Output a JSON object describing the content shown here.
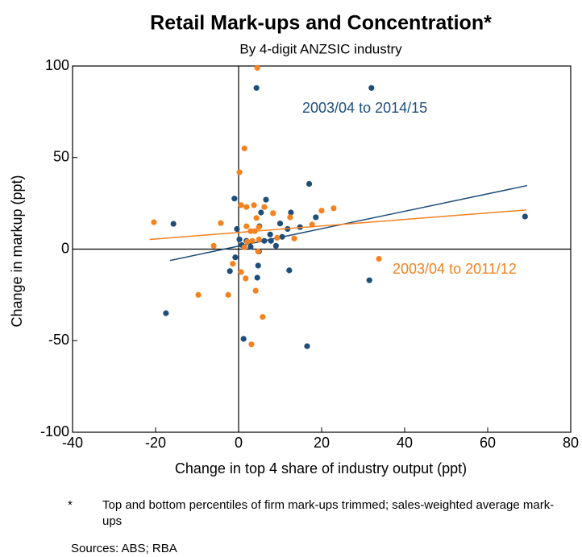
{
  "chart_data": {
    "type": "scatter",
    "title": "Retail Mark-ups and Concentration*",
    "subtitle": "By 4-digit ANZSIC industry",
    "x_label": "Change in top 4 share of industry output (ppt)",
    "y_label": "Change in markup (ppt)",
    "xlim": [
      -40,
      80
    ],
    "ylim": [
      -100,
      100
    ],
    "xticks": [
      -40,
      -20,
      0,
      20,
      40,
      60,
      80
    ],
    "yticks": [
      -100,
      -50,
      0,
      50,
      100
    ],
    "series": [
      {
        "name": "2003/04 to 2014/15",
        "color": "#1f4e79",
        "x": [
          32,
          4.3,
          -15.7,
          -17.5,
          -1,
          6.6,
          17,
          1.2,
          16.5,
          12.2,
          31.5,
          69,
          18.6,
          12.6,
          5.4,
          4.5,
          -2.1,
          -0.8,
          -0.4,
          5,
          7.6,
          10,
          14.8,
          10.5,
          11.8,
          9,
          4.9,
          0.8,
          1.9,
          2.9,
          6.2,
          7.8,
          4.7,
          0.2
        ],
        "values": [
          88,
          88,
          13.8,
          -35,
          27.6,
          27,
          35.6,
          -49,
          -53,
          -11.6,
          -17,
          17.8,
          17.4,
          20,
          20,
          -15.6,
          -12,
          -4.5,
          11,
          12.5,
          8,
          14,
          12,
          6.7,
          11,
          1.8,
          -1.3,
          2.2,
          4.5,
          1.3,
          4.5,
          4.5,
          -9,
          5.3
        ],
        "trendline": {
          "x": [
            -16.5,
            69.5
          ],
          "values": [
            -6.2,
            34.7
          ]
        }
      },
      {
        "name": "2003/04 to 2011/12",
        "color": "#f58220",
        "x": [
          4.5,
          1.4,
          0.2,
          -20.4,
          -4.3,
          -6,
          -9.7,
          -2.5,
          -1.4,
          0.6,
          3.1,
          5.8,
          4.1,
          1.7,
          0.6,
          1.9,
          3.7,
          6.2,
          4.9,
          3.9,
          2.9,
          8.3,
          12.4,
          20,
          22.9,
          17.7,
          13.4,
          9.3,
          4.3,
          2.1,
          1.4,
          3.3,
          4.7,
          33.8,
          1.9,
          4.9
        ],
        "values": [
          99,
          55,
          42,
          14.7,
          14.2,
          1.8,
          -25,
          -25,
          -8,
          -12.5,
          -52,
          -37,
          -22.7,
          -16,
          24,
          23,
          24,
          23,
          12,
          9.8,
          9.8,
          19.6,
          17.4,
          21,
          22.3,
          13.4,
          5.8,
          6.2,
          17,
          4,
          1,
          4.5,
          -1.3,
          -5.3,
          12.5,
          5.3
        ],
        "trendline": {
          "x": [
            -21.4,
            69.3
          ],
          "values": [
            5.3,
            21.4
          ]
        }
      }
    ],
    "footnote_marker": "*",
    "footnote": "Top and bottom percentiles of firm mark-ups trimmed; sales-weighted average mark-ups",
    "sources": "Sources: ABS; RBA"
  }
}
